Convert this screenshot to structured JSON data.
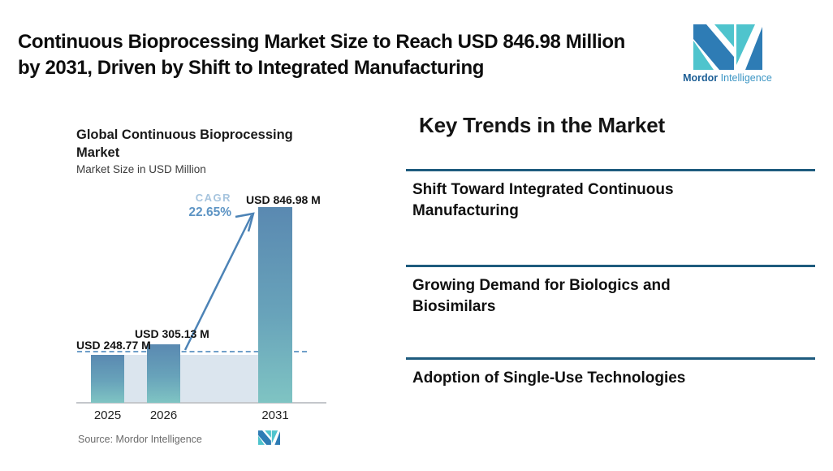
{
  "header": {
    "title_lines": [
      "Continuous Bioprocessing Market Size to Reach USD 846.98 Million",
      "by 2031, Driven by Shift to Integrated Manufacturing"
    ],
    "logo": {
      "word_bold": "Mordor",
      "word_light": "Intelligence"
    }
  },
  "chart_data": {
    "type": "bar",
    "title": "Global Continuous Bioprocessing Market",
    "title_lines": [
      "Global Continuous Bioprocessing",
      "Market"
    ],
    "subtitle": "Market Size in USD Million",
    "categories": [
      "2025",
      "2026",
      "2031"
    ],
    "values": [
      248.77,
      305.13,
      846.98
    ],
    "value_labels": [
      "USD 248.77 M",
      "USD 305.13 M",
      "USD 846.98 M"
    ],
    "unit": "USD Million",
    "cagr_label": "CAGR",
    "cagr_value": "22.65%",
    "source": "Source: Mordor Intelligence",
    "ylim": [
      0,
      900
    ],
    "grid": false,
    "legend": "none",
    "annotations": [
      "dashed horizontal baseline at 2025 market-size level",
      "growth arrow from 2026 bar to 2031 bar"
    ]
  },
  "trends": {
    "heading": "Key Trends in the Market",
    "items": [
      "Shift Toward Integrated Continuous Manufacturing",
      "Growing Demand for Biologics and Biosimilars",
      "Adoption of Single-Use Technologies"
    ]
  },
  "colors": {
    "bar_top": "#5a89b1",
    "bar_bottom": "#7fc4c3",
    "band": "#dbe5ee",
    "dashed_line": "#6f9fc9",
    "arrow": "#4c83b6",
    "trend_rule": "#1e5b7e",
    "logo_blue": "#2e7cb5",
    "logo_teal": "#4fc4cd",
    "cagr_word": "#a6c4de",
    "cagr_value": "#5d94c4"
  }
}
